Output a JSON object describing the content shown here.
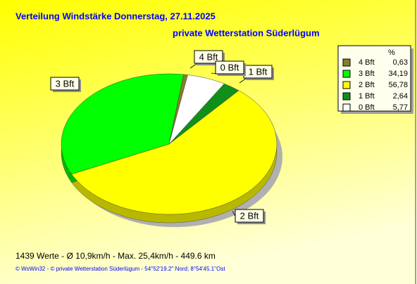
{
  "chart_data": {
    "type": "pie",
    "title": "Verteilung Windstärke  Donnerstag, 27.11.2025",
    "subtitle": "private Wetterstation Süderlügum",
    "categories": [
      "4 Bft",
      "3 Bft",
      "2 Bft",
      "1 Bft",
      "0 Bft"
    ],
    "values": [
      0.63,
      34.19,
      56.78,
      2.64,
      5.77
    ],
    "value_labels": [
      "0,63",
      "34,19",
      "56,78",
      "2,64",
      "5,77"
    ],
    "colors": [
      "#8a7d2a",
      "#00ff00",
      "#ffff00",
      "#10901a",
      "#ffffff"
    ],
    "legend_title": "%",
    "legend_position": "upper right",
    "annotations": [
      "1439 Werte   -   Ø 10,9km/h  -  Max. 25,4km/h  -   449.6 km",
      "© WsWin32  -  © private Wetterstation Süderlügum  -  54°52'19.2'' Nord; 8°54'45.1''Ost"
    ]
  }
}
